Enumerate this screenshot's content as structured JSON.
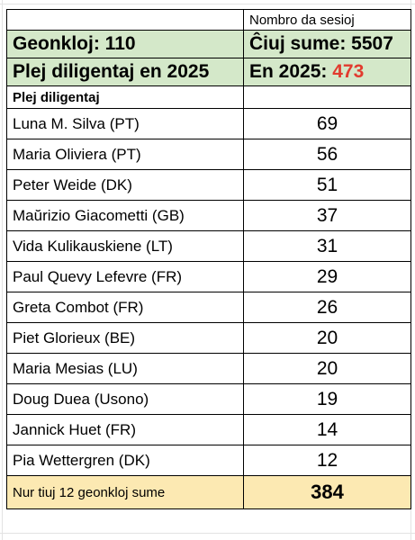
{
  "header": {
    "sessions_title": "Nombro da sesioj",
    "participants_label": "Geonkloj: 110",
    "total_label": "Ĉiuj sume: 5507",
    "top_2025_label": "Plej diligentaj en 2025",
    "year_2025_prefix": "En 2025:",
    "year_2025_value": "473",
    "subheader": "Plej diligentaj",
    "value_color": "#e23b2e"
  },
  "rows": [
    {
      "name": "Luna M. Silva (PT)",
      "value": "69"
    },
    {
      "name": "Maria Oliviera (PT)",
      "value": "56"
    },
    {
      "name": "Peter Weide (DK)",
      "value": "51"
    },
    {
      "name": "Maŭrizio Giacometti (GB)",
      "value": "37"
    },
    {
      "name": "Vida Kulikauskiene (LT)",
      "value": "31"
    },
    {
      "name": "Paul Quevy Lefevre (FR)",
      "value": "29"
    },
    {
      "name": "Greta Combot (FR)",
      "value": "26"
    },
    {
      "name": "Piet Glorieux (BE)",
      "value": "20"
    },
    {
      "name": "Maria Mesias (LU)",
      "value": "20"
    },
    {
      "name": "Doug Duea (Usono)",
      "value": "19"
    },
    {
      "name": "Jannick Huet (FR)",
      "value": "14"
    },
    {
      "name": "Pia Wettergren  (DK)",
      "value": "12"
    }
  ],
  "footer": {
    "label": "Nur tiuj 12 geonkloj sume",
    "value": "384"
  },
  "colors": {
    "header_bg": "#d4e8c9",
    "footer_bg": "#fce9b2",
    "highlight": "#e23b2e"
  }
}
